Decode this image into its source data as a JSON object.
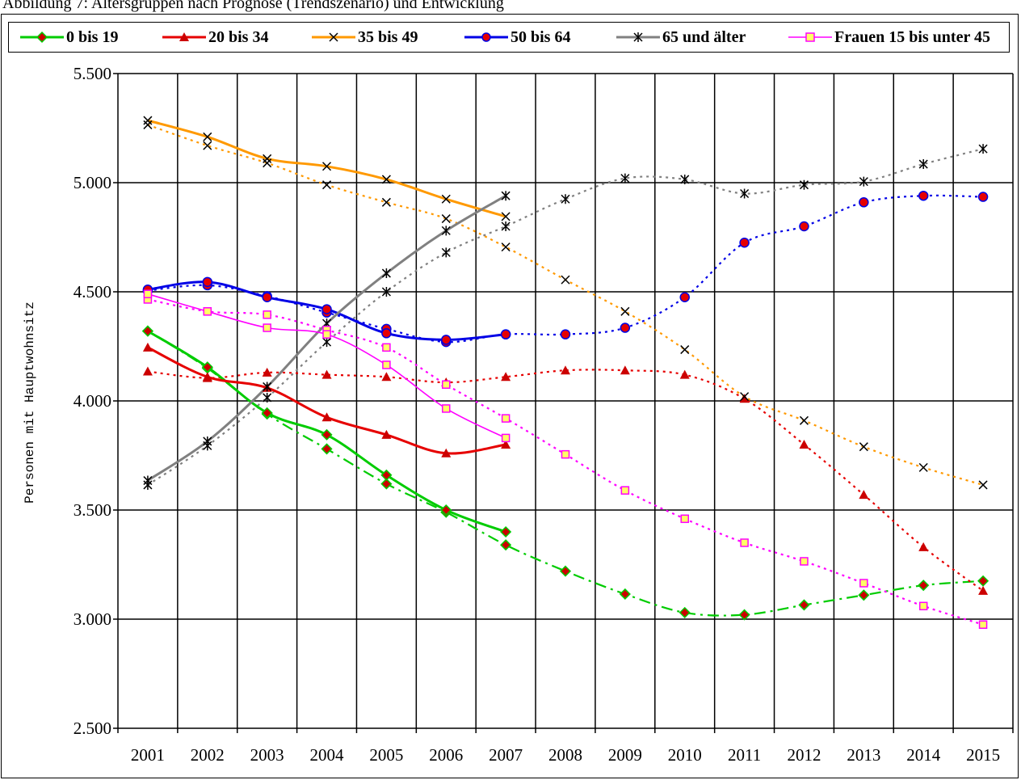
{
  "caption": "Abbildung 7: Altersgruppen nach Prognose (Trendszenario) und Entwicklung",
  "chart_data": {
    "type": "line",
    "title": "",
    "xlabel": "",
    "ylabel": "Personen mit Hauptwohnsitz",
    "categories": [
      "2001",
      "2002",
      "2003",
      "2004",
      "2005",
      "2006",
      "2007",
      "2008",
      "2009",
      "2010",
      "2011",
      "2012",
      "2013",
      "2014",
      "2015"
    ],
    "ylim": [
      2500,
      5500
    ],
    "yticks": [
      2500,
      3000,
      3500,
      4000,
      4500,
      5000,
      5500
    ],
    "ytick_labels": [
      "2.500",
      "3.000",
      "3.500",
      "4.000",
      "4.500",
      "5.000",
      "5.500"
    ],
    "grid": true,
    "legend": "top",
    "series": [
      {
        "name": "0 bis 19",
        "color": "#00cc00",
        "marker": "diamond",
        "marker_fill": "#cc0000",
        "actual": [
          4320,
          4155,
          3945,
          3845,
          3660,
          3500,
          3400
        ],
        "forecast": [
          4320,
          4150,
          3940,
          3780,
          3620,
          3490,
          3340,
          3220,
          3115,
          3030,
          3020,
          3065,
          3110,
          3155,
          3175
        ]
      },
      {
        "name": "20 bis 34",
        "color": "#e60000",
        "marker": "triangle",
        "marker_fill": "#cc0000",
        "actual": [
          4245,
          4110,
          4060,
          3925,
          3845,
          3760,
          3800
        ],
        "forecast": [
          4135,
          4105,
          4130,
          4120,
          4110,
          4085,
          4110,
          4140,
          4140,
          4120,
          4010,
          3800,
          3570,
          3330,
          3130
        ]
      },
      {
        "name": "35 bis 49",
        "color": "#ff9900",
        "marker": "x",
        "marker_fill": "#000000",
        "actual": [
          5285,
          5210,
          5110,
          5075,
          5015,
          4925,
          4845
        ],
        "forecast": [
          5265,
          5170,
          5090,
          4990,
          4910,
          4835,
          4705,
          4555,
          4410,
          4235,
          4020,
          3910,
          3790,
          3695,
          3615
        ]
      },
      {
        "name": "50 bis 64",
        "color": "#0000e6",
        "marker": "circle",
        "marker_fill": "#e60000",
        "actual": [
          4510,
          4545,
          4475,
          4420,
          4310,
          4280,
          4305
        ],
        "forecast": [
          4505,
          4530,
          4480,
          4405,
          4330,
          4270,
          4305,
          4305,
          4335,
          4475,
          4725,
          4800,
          4910,
          4940,
          4935
        ]
      },
      {
        "name": "65 und älter",
        "color": "#808080",
        "marker": "star",
        "marker_fill": "#000000",
        "actual": [
          3635,
          3815,
          4065,
          4355,
          4585,
          4780,
          4940
        ],
        "forecast": [
          3615,
          3795,
          4015,
          4270,
          4500,
          4680,
          4800,
          4925,
          5020,
          5015,
          4950,
          4990,
          5005,
          5085,
          5155
        ]
      },
      {
        "name": "Frauen 15 bis unter 45",
        "color": "#ff00ff",
        "marker": "square",
        "marker_fill": "#ffff66",
        "actual": [
          4490,
          4410,
          4335,
          4305,
          4165,
          3965,
          3830
        ],
        "forecast": [
          4465,
          4410,
          4395,
          4325,
          4245,
          4075,
          3920,
          3755,
          3590,
          3460,
          3350,
          3265,
          3165,
          3060,
          2975
        ]
      }
    ]
  }
}
